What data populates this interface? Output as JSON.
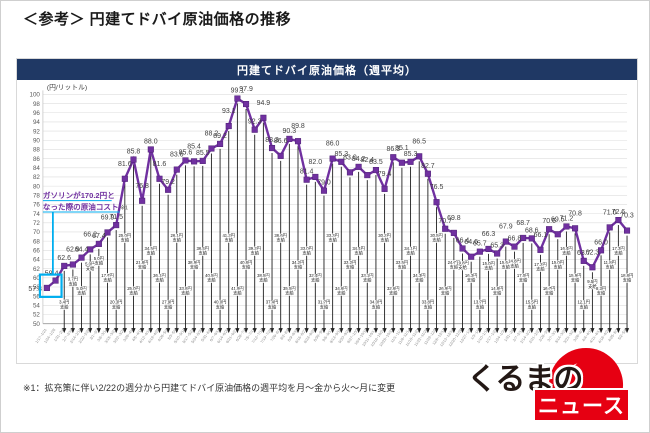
{
  "page": {
    "title": "＜参考＞ 円建てドバイ原油価格の推移",
    "footnote": "※1：拡充策に伴い2/22の週分から円建てドバイ原油価格の週平均を月～金から火～月に変更"
  },
  "chart": {
    "header": "円建てドバイ原油価格（週平均）",
    "unit_label": "(円/リットル)",
    "annotation": {
      "line1": "ガソリンが170.2円と",
      "line2": "なった際の原油コスト",
      "ref": "※1"
    }
  },
  "colors": {
    "banner_navy": "#1F3864",
    "line_purple": "#7030A0",
    "highlight_blue": "#00AEEF",
    "arrow_black": "#1f1f1f",
    "logo_red": "#E60012"
  },
  "logo": {
    "text_top": "くるまの",
    "text_bottom": "ニュース"
  },
  "chart_data": {
    "type": "line",
    "title": "円建てドバイ原油価格（週平均）",
    "ylabel": "(円/リットル)",
    "ylim": [
      50,
      100
    ],
    "ytick_step": 2,
    "grid": true,
    "legend": "none",
    "series_name": "円建てドバイ原油価格",
    "x": [
      "1/17~1/21",
      "1/24~1/28",
      "1/31~2/4",
      "2/7~2/10",
      "2/14~2/18",
      "2/22~2/28",
      "3/1~3/7",
      "3/8~3/14",
      "3/15~3/21",
      "3/22~3/28",
      "3/29~4/4",
      "4/5~4/11",
      "4/12~4/18",
      "4/19~4/25",
      "4/26~5/2",
      "5/3~5/9",
      "5/10~5/16",
      "5/17~5/23",
      "5/24~5/30",
      "5/31~6/6",
      "6/7~6/13",
      "6/14~6/20",
      "6/21~6/27",
      "6/28~7/4",
      "7/5~7/11",
      "7/12~7/18",
      "7/19~7/25",
      "7/26~8/1",
      "8/2~8/8",
      "8/9~8/15",
      "8/16~8/22",
      "8/23~8/29",
      "8/30~9/5",
      "9/6~9/12",
      "9/13~9/19",
      "9/20~9/26",
      "9/27~10/3",
      "10/4~10/10",
      "10/11~10/17",
      "10/18~10/24",
      "10/25~10/31",
      "11/1~11/7",
      "11/8~11/14",
      "11/15~11/21",
      "11/22~11/28",
      "11/29~12/5",
      "12/6~12/12",
      "12/13~12/19",
      "12/20~12/26",
      "12/27~1/2",
      "1/3~1/9",
      "1/10~1/16",
      "1/17~1/23",
      "1/24~1/30",
      "1/31~2/6",
      "2/7~2/13",
      "2/14~2/20",
      "2/21~2/27",
      "2/28~3/6",
      "3/7~3/13",
      "3/14~3/20",
      "3/21~3/27",
      "3/28~4/3",
      "4/4~4/10",
      "4/11~4/17",
      "4/18~4/24",
      "4/25~5/1",
      "5/2~5/8"
    ],
    "values": [
      57.8,
      59.4,
      62.6,
      62.9,
      64.4,
      66.2,
      67.4,
      69.9,
      71.5,
      81.6,
      85.8,
      76.8,
      88.0,
      81.6,
      79.2,
      83.6,
      85.6,
      85.4,
      85.5,
      88.2,
      89.2,
      93.1,
      99.1,
      97.9,
      92.3,
      94.9,
      88.3,
      86.6,
      90.3,
      89.8,
      81.4,
      82.0,
      79.0,
      86.0,
      85.3,
      83.0,
      84.2,
      82.4,
      83.5,
      79.4,
      86.3,
      85.1,
      85.3,
      86.5,
      82.7,
      76.5,
      70.7,
      69.8,
      66.4,
      64.6,
      65.7,
      66.3,
      65.3,
      67.9,
      66.8,
      68.7,
      68.6,
      66.1,
      70.6,
      69.5,
      71.2,
      70.8,
      63.7,
      62.3,
      66.0,
      71.0,
      72.6,
      70.3
    ],
    "subsidy": [
      null,
      null,
      3.4,
      3.7,
      5.0,
      5.0,
      5.0,
      17.7,
      20.3,
      25.0,
      25.0,
      21.8,
      34.5,
      36.1,
      27.9,
      26.1,
      33.8,
      38.9,
      36.4,
      40.5,
      40.0,
      41.2,
      41.9,
      40.8,
      39.2,
      38.5,
      37.4,
      36.6,
      35.5,
      34.2,
      33.0,
      32.4,
      31.7,
      33.3,
      34.6,
      33.2,
      34.4,
      33.1,
      34.0,
      30.2,
      32.6,
      33.5,
      34.1,
      34.3,
      33.8,
      30.5,
      26.9,
      24.7,
      19.8,
      16.3,
      13.7,
      15.0,
      14.8,
      15.6,
      14.8,
      17.0,
      15.5,
      17.2,
      16.7,
      15.0,
      16.4,
      15.9,
      12.1,
      9.5,
      8.3,
      11.8,
      17.3,
      18.8
    ],
    "subsidy_unit": "円",
    "subsidy_word": "支給",
    "highlight": {
      "indices": [
        0,
        1
      ]
    }
  }
}
